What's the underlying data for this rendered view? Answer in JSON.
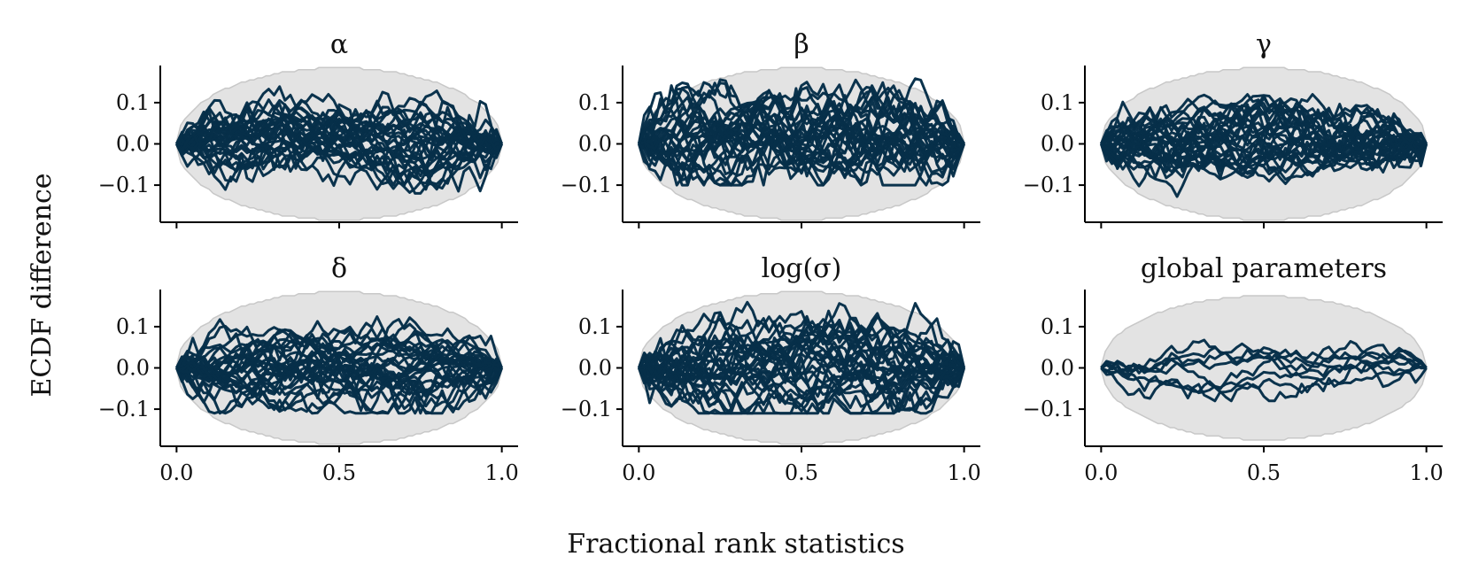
{
  "figure": {
    "ylabel": "ECDF difference",
    "xlabel": "Fractional rank statistics",
    "line_color": "#062f49",
    "band_color": "#e3e3e3"
  },
  "chart_data": [
    {
      "type": "line",
      "title": "α",
      "num_traces": 30,
      "band_halfwidth": 0.18,
      "ylim": [
        -0.19,
        0.19
      ],
      "xlim": [
        -0.05,
        1.05
      ],
      "xticks": [
        0.0,
        0.5,
        1.0
      ],
      "xtick_labels": [
        "",
        "",
        ""
      ],
      "yticks": [
        0.1,
        0.0,
        -0.1
      ],
      "ytick_labels": [
        "0.1",
        "0.0",
        "−0.1"
      ],
      "approx_trace_range": [
        -0.12,
        0.14
      ],
      "grid": false
    },
    {
      "type": "line",
      "title": "β",
      "num_traces": 30,
      "band_halfwidth": 0.18,
      "ylim": [
        -0.19,
        0.19
      ],
      "xlim": [
        -0.05,
        1.05
      ],
      "xticks": [
        0.0,
        0.5,
        1.0
      ],
      "xtick_labels": [
        "",
        "",
        ""
      ],
      "yticks": [
        0.1,
        0.0,
        -0.1
      ],
      "ytick_labels": [
        "0.1",
        "0.0",
        "−0.1"
      ],
      "approx_trace_range": [
        -0.1,
        0.16
      ],
      "grid": false
    },
    {
      "type": "line",
      "title": "γ",
      "num_traces": 30,
      "band_halfwidth": 0.18,
      "ylim": [
        -0.19,
        0.19
      ],
      "xlim": [
        -0.05,
        1.05
      ],
      "xticks": [
        0.0,
        0.5,
        1.0
      ],
      "xtick_labels": [
        "",
        "",
        ""
      ],
      "yticks": [
        0.1,
        0.0,
        -0.1
      ],
      "ytick_labels": [
        "0.1",
        "0.0",
        "−0.1"
      ],
      "approx_trace_range": [
        -0.13,
        0.12
      ],
      "grid": false
    },
    {
      "type": "line",
      "title": "δ",
      "num_traces": 30,
      "band_halfwidth": 0.18,
      "ylim": [
        -0.19,
        0.19
      ],
      "xlim": [
        -0.05,
        1.05
      ],
      "xticks": [
        0.0,
        0.5,
        1.0
      ],
      "xtick_labels": [
        "0.0",
        "0.5",
        "1.0"
      ],
      "yticks": [
        0.1,
        0.0,
        -0.1
      ],
      "ytick_labels": [
        "0.1",
        "0.0",
        "−0.1"
      ],
      "approx_trace_range": [
        -0.11,
        0.13
      ],
      "grid": false
    },
    {
      "type": "line",
      "title": "log(σ)",
      "num_traces": 30,
      "band_halfwidth": 0.18,
      "ylim": [
        -0.19,
        0.19
      ],
      "xlim": [
        -0.05,
        1.05
      ],
      "xticks": [
        0.0,
        0.5,
        1.0
      ],
      "xtick_labels": [
        "0.0",
        "0.5",
        "1.0"
      ],
      "yticks": [
        0.1,
        0.0,
        -0.1
      ],
      "ytick_labels": [
        "0.1",
        "0.0",
        "−0.1"
      ],
      "approx_trace_range": [
        -0.11,
        0.16
      ],
      "grid": false
    },
    {
      "type": "line",
      "title": "global parameters",
      "num_traces": 8,
      "band_halfwidth": 0.17,
      "ylim": [
        -0.19,
        0.19
      ],
      "xlim": [
        -0.05,
        1.05
      ],
      "xticks": [
        0.0,
        0.5,
        1.0
      ],
      "xtick_labels": [
        "0.0",
        "0.5",
        "1.0"
      ],
      "yticks": [
        0.1,
        0.0,
        -0.1
      ],
      "ytick_labels": [
        "0.1",
        "0.0",
        "−0.1"
      ],
      "approx_trace_range": [
        -0.08,
        0.11
      ],
      "grid": false
    }
  ]
}
